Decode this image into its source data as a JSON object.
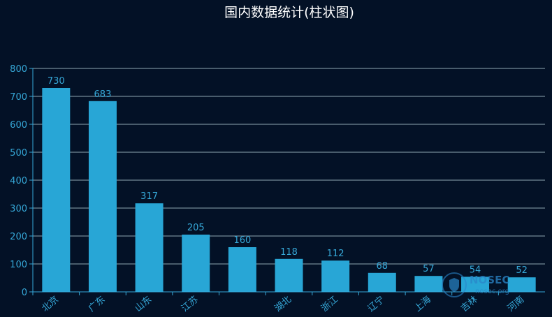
{
  "chart_data": {
    "type": "bar",
    "title": "国内数据统计(柱状图)",
    "categories": [
      "北京",
      "广东",
      "山东",
      "江苏",
      "",
      "湖北",
      "浙江",
      "辽宁",
      "上海",
      "吉林",
      "河南"
    ],
    "values": [
      730,
      683,
      317,
      205,
      160,
      118,
      112,
      68,
      57,
      54,
      52
    ],
    "ylim": [
      0,
      800
    ],
    "yticks": [
      0,
      100,
      200,
      300,
      400,
      500,
      600,
      700,
      800
    ],
    "grid": true,
    "colors": {
      "background": "#031126",
      "bar": "#28a6d6",
      "label": "#36a8d8",
      "gridline": "#8fa6b2",
      "title": "#ffffff"
    }
  },
  "watermark": {
    "text": "NOSEC",
    "sub": "nosec.org",
    "icon": "shield-icon"
  }
}
